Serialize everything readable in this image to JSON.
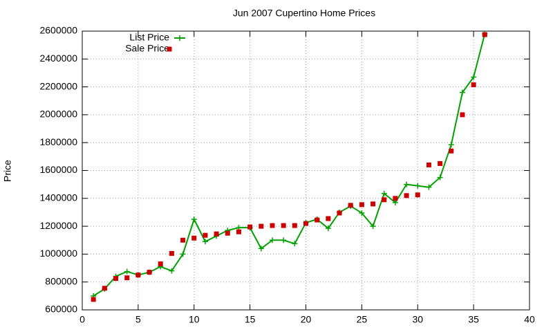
{
  "chart_data": {
    "type": "line",
    "title": "Jun 2007 Cupertino Home Prices",
    "y_label": "Price",
    "x": [
      1,
      2,
      3,
      4,
      5,
      6,
      7,
      8,
      9,
      10,
      11,
      12,
      13,
      14,
      15,
      16,
      17,
      18,
      19,
      20,
      21,
      22,
      23,
      24,
      25,
      26,
      27,
      28,
      29,
      30,
      31,
      32,
      33,
      34,
      35,
      36
    ],
    "series": [
      {
        "name": "List Price",
        "color": "#00a000",
        "style": "line",
        "marker": "plus",
        "values": [
          700000,
          750000,
          840000,
          875000,
          850000,
          870000,
          910000,
          880000,
          1000000,
          1250000,
          1090000,
          1130000,
          1170000,
          1190000,
          1190000,
          1040000,
          1100000,
          1100000,
          1075000,
          1225000,
          1250000,
          1185000,
          1300000,
          1345000,
          1295000,
          1200000,
          1435000,
          1370000,
          1500000,
          1490000,
          1480000,
          1550000,
          1785000,
          2160000,
          2270000,
          2580000
        ]
      },
      {
        "name": "Sale Price",
        "color": "#cc0000",
        "style": "points",
        "marker": "square",
        "values": [
          675000,
          755000,
          825000,
          830000,
          850000,
          870000,
          930000,
          1005000,
          1100000,
          1115000,
          1135000,
          1145000,
          1150000,
          1160000,
          1195000,
          1200000,
          1205000,
          1205000,
          1205000,
          1220000,
          1245000,
          1255000,
          1295000,
          1350000,
          1355000,
          1360000,
          1390000,
          1400000,
          1420000,
          1425000,
          1640000,
          1650000,
          1740000,
          2000000,
          2215000,
          2575000
        ]
      }
    ],
    "xlim": [
      0,
      40
    ],
    "xticks": [
      0,
      5,
      10,
      15,
      20,
      25,
      30,
      35,
      40
    ],
    "ylim": [
      600000,
      2600000
    ],
    "yticks": [
      600000,
      800000,
      1000000,
      1200000,
      1400000,
      1600000,
      1800000,
      2000000,
      2200000,
      2400000,
      2600000
    ],
    "grid": true,
    "legend": "top-left"
  }
}
